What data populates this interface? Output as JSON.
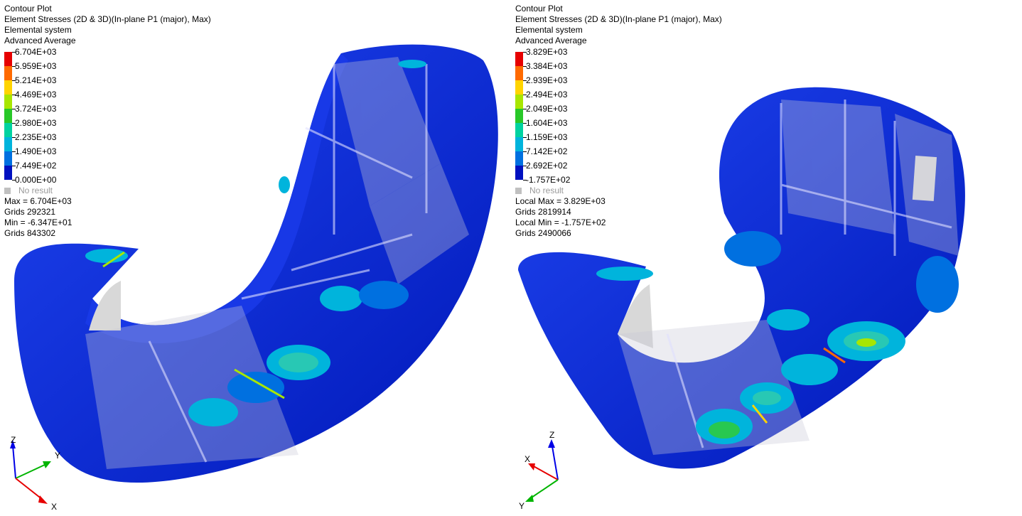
{
  "left": {
    "info": [
      "Contour Plot",
      "Element Stresses (2D & 3D)(In-plane P1 (major), Max)",
      "Elemental system",
      "Advanced Average"
    ],
    "legend_labels": [
      "6.704E+03",
      "5.959E+03",
      "5.214E+03",
      "4.469E+03",
      "3.724E+03",
      "2.980E+03",
      "2.235E+03",
      "1.490E+03",
      "7.449E+02",
      "0.000E+00"
    ],
    "no_result": "No result",
    "stats": [
      "Max = 6.704E+03",
      "Grids 292321",
      "Min = -6.347E+01",
      "Grids 843302"
    ],
    "axes": {
      "z": "Z",
      "y": "Y",
      "x": "X"
    }
  },
  "right": {
    "info": [
      "Contour Plot",
      "Element Stresses (2D & 3D)(In-plane P1 (major), Max)",
      "Elemental system",
      "Advanced Average"
    ],
    "legend_labels": [
      "3.829E+03",
      "3.384E+03",
      "2.939E+03",
      "2.494E+03",
      "2.049E+03",
      "1.604E+03",
      "1.159E+03",
      "7.142E+02",
      "2.692E+02",
      "-1.757E+02"
    ],
    "no_result": "No result",
    "stats": [
      "Local Max = 3.829E+03",
      "Grids 2819914",
      "Local Min = -1.757E+02",
      "Grids 2490066"
    ],
    "axes": {
      "z": "Z",
      "x": "X",
      "y": "Y"
    }
  },
  "legend_colors": [
    "#e60000",
    "#ff6a00",
    "#ffd400",
    "#a8e600",
    "#28c828",
    "#00d2a0",
    "#00b4dc",
    "#0070e0",
    "#0010c0"
  ],
  "colors": {
    "shell": "#0a2ad8",
    "shell_dark": "#001a9a",
    "glass": "#c8c8d8"
  }
}
